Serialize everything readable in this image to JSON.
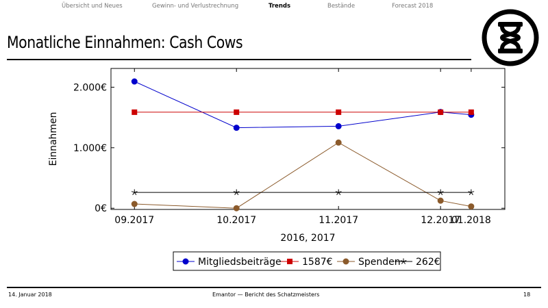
{
  "nav": {
    "items": [
      {
        "label": "Übersicht und Neues",
        "active": false
      },
      {
        "label": "Gewinn- und Verlustrechnung",
        "active": false
      },
      {
        "label": "Trends",
        "active": true
      },
      {
        "label": "Bestände",
        "active": false
      },
      {
        "label": "Forecast 2018",
        "active": false
      }
    ]
  },
  "slide": {
    "title": "Monatliche Einnahmen: Cash Cows"
  },
  "footer": {
    "date": "14. Januar 2018",
    "center": "Emantor — Bericht des Schatzmeisters",
    "page": "18"
  },
  "chart_data": {
    "type": "line",
    "title": "",
    "xlabel": "2016, 2017",
    "ylabel": "Einnahmen",
    "x_ticks": [
      "09.2017",
      "10.2017",
      "11.2017",
      "12.2017",
      "01.2018"
    ],
    "x": [
      0,
      1,
      2,
      3,
      3.3
    ],
    "xlim": [
      -0.23,
      3.63
    ],
    "y_ticks": [
      {
        "value": 0,
        "label": "0€"
      },
      {
        "value": 1000,
        "label": "1.000€"
      },
      {
        "value": 2000,
        "label": "2.000€"
      }
    ],
    "ylim": [
      -20,
      2310
    ],
    "grid": false,
    "legend_position": "bottom",
    "series": [
      {
        "name": "Mitgliedsbeiträge",
        "color": "#0000cc",
        "marker": "circle",
        "values": [
          2095,
          1330,
          1355,
          1590,
          1545
        ]
      },
      {
        "name": "1587€",
        "color": "#cc0000",
        "marker": "square",
        "values": [
          1587,
          1587,
          1587,
          1587,
          1587
        ]
      },
      {
        "name": "Spenden",
        "color": "#8b5a2b",
        "marker": "circle",
        "values": [
          70,
          0,
          1085,
          125,
          30
        ]
      },
      {
        "name": "262€",
        "color": "#000000",
        "marker": "star",
        "values": [
          262,
          262,
          262,
          262,
          262
        ]
      }
    ]
  }
}
